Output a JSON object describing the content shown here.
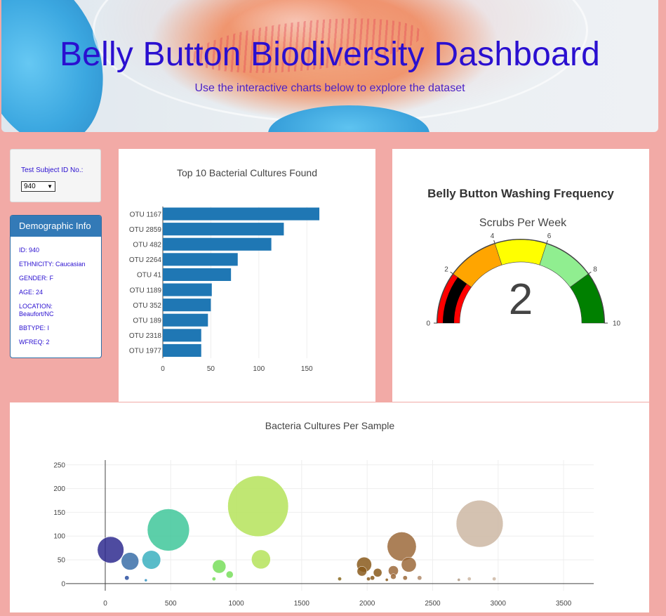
{
  "header": {
    "title": "Belly Button Biodiversity Dashboard",
    "subtitle": "Use the interactive charts below to explore the dataset"
  },
  "selector": {
    "label": "Test Subject ID No.:",
    "selected": "940"
  },
  "demographics": {
    "title": "Demographic Info",
    "rows": [
      "ID: 940",
      "ETHNICITY: Caucasian",
      "GENDER: F",
      "AGE: 24",
      "LOCATION: Beaufort/NC",
      "BBTYPE: I",
      "WFREQ: 2"
    ]
  },
  "colors": {
    "bar": "#1f77b4",
    "title_text": "#2a0fd0",
    "gauge_colors": [
      "#ff0000",
      "#ffa500",
      "#ffff00",
      "#90ee90",
      "#008000"
    ]
  },
  "chart_data": [
    {
      "type": "bar",
      "orientation": "horizontal",
      "title": "Top 10 Bacterial Cultures Found",
      "categories": [
        "OTU 1167",
        "OTU 2859",
        "OTU 482",
        "OTU 2264",
        "OTU 41",
        "OTU 1189",
        "OTU 352",
        "OTU 189",
        "OTU 2318",
        "OTU 1977"
      ],
      "values": [
        163,
        126,
        113,
        78,
        71,
        51,
        50,
        47,
        40,
        40
      ],
      "xticks": [
        0,
        50,
        100,
        150
      ],
      "xlim": [
        0,
        171
      ]
    },
    {
      "type": "gauge",
      "title": "Belly Button Washing Frequency",
      "subtitle": "Scrubs Per Week",
      "value": 2,
      "range": [
        0,
        10
      ],
      "ticks": [
        0,
        2,
        4,
        6,
        8,
        10
      ],
      "steps": [
        [
          0,
          2
        ],
        [
          2,
          4
        ],
        [
          4,
          6
        ],
        [
          6,
          8
        ],
        [
          8,
          10
        ]
      ]
    },
    {
      "type": "scatter",
      "title": "Bacteria Cultures Per Sample",
      "xticks": [
        0,
        500,
        1000,
        1500,
        2000,
        2500,
        3000,
        3500
      ],
      "yticks": [
        0,
        50,
        100,
        150,
        200,
        250
      ],
      "xlim": [
        -300,
        3730
      ],
      "ylim": [
        -15,
        260
      ],
      "points": [
        {
          "x": 41,
          "y": 71,
          "color": "#2f2b8f"
        },
        {
          "x": 189,
          "y": 47,
          "color": "#3a6fa8"
        },
        {
          "x": 352,
          "y": 50,
          "color": "#3bb0c0"
        },
        {
          "x": 482,
          "y": 113,
          "color": "#3fc79a"
        },
        {
          "x": 1167,
          "y": 163,
          "color": "#b5e35a"
        },
        {
          "x": 1189,
          "y": 51,
          "color": "#b5e35a"
        },
        {
          "x": 2264,
          "y": 78,
          "color": "#9c6a3b"
        },
        {
          "x": 2318,
          "y": 40,
          "color": "#9c6a3b"
        },
        {
          "x": 2859,
          "y": 126,
          "color": "#cdb7a3"
        },
        {
          "x": 1977,
          "y": 40,
          "color": "#8a5a1c"
        },
        {
          "x": 870,
          "y": 36,
          "color": "#78de5c"
        },
        {
          "x": 950,
          "y": 19,
          "color": "#78de5c"
        },
        {
          "x": 1960,
          "y": 26,
          "color": "#8a5a1c"
        },
        {
          "x": 2040,
          "y": 12,
          "color": "#8a5a1c"
        },
        {
          "x": 2080,
          "y": 23,
          "color": "#8a5a1c"
        },
        {
          "x": 2200,
          "y": 27,
          "color": "#9c6a3b"
        },
        {
          "x": 2200,
          "y": 15,
          "color": "#9c6a3b"
        },
        {
          "x": 2290,
          "y": 12,
          "color": "#9c6a3b"
        },
        {
          "x": 2400,
          "y": 12,
          "color": "#b08a6a"
        },
        {
          "x": 2780,
          "y": 10,
          "color": "#cdb7a3"
        },
        {
          "x": 2970,
          "y": 10,
          "color": "#cdb7a3"
        },
        {
          "x": 165,
          "y": 12,
          "color": "#2a4fa0"
        },
        {
          "x": 310,
          "y": 7,
          "color": "#2a8fc0"
        },
        {
          "x": 830,
          "y": 10,
          "color": "#78de5c"
        },
        {
          "x": 1790,
          "y": 10,
          "color": "#8a6a20"
        },
        {
          "x": 2010,
          "y": 10,
          "color": "#8a5a1c"
        },
        {
          "x": 2150,
          "y": 8,
          "color": "#8a5a1c"
        },
        {
          "x": 2700,
          "y": 8,
          "color": "#b09a85"
        }
      ]
    }
  ]
}
